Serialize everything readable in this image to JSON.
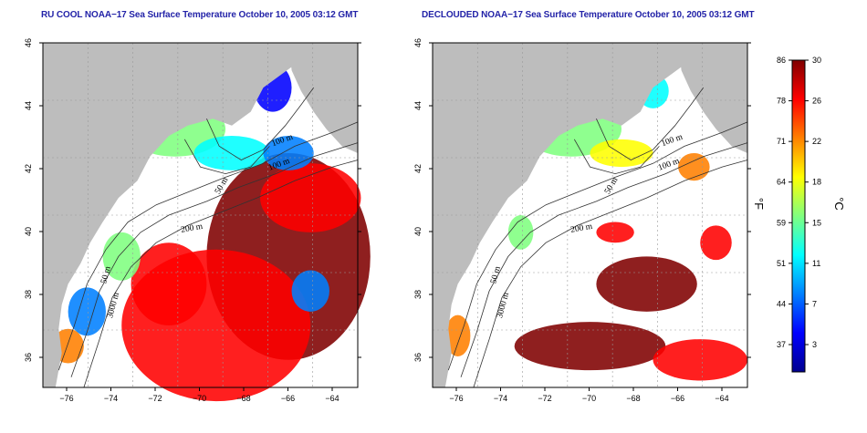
{
  "panels": [
    {
      "title": "RU COOL NOAA−17 Sea Surface Temperature October 10, 2005 03:12 GMT",
      "x_ticks": [
        "−76",
        "−74",
        "−72",
        "−70",
        "−68",
        "−66",
        "−64"
      ],
      "y_ticks": [
        "46",
        "44",
        "42",
        "40",
        "38",
        "36"
      ],
      "depth_labels": [
        "100 m",
        "100 m",
        "50 m",
        "200 m",
        "50 m",
        "3000 m"
      ],
      "cloud_masked": false
    },
    {
      "title": "DECLOUDED NOAA−17 Sea Surface Temperature October 10, 2005 03:12 GMT",
      "x_ticks": [
        "−76",
        "−74",
        "−72",
        "−70",
        "−68",
        "−66",
        "−64"
      ],
      "y_ticks": [
        "46",
        "44",
        "42",
        "40",
        "38",
        "36"
      ],
      "depth_labels": [
        "100 m",
        "100 m",
        "50 m",
        "200 m",
        "50 m",
        "3000 m"
      ],
      "cloud_masked": true
    }
  ],
  "colorbar": {
    "fahrenheit_ticks": [
      "86",
      "78",
      "71",
      "64",
      "59",
      "51",
      "44",
      "37"
    ],
    "celsius_ticks": [
      "30",
      "26",
      "22",
      "18",
      "15",
      "11",
      "7",
      "3"
    ],
    "unit_f": "°F",
    "unit_c": "°C",
    "colors": [
      "#00008f",
      "#0000ff",
      "#0080ff",
      "#00ffff",
      "#80ff80",
      "#ffff00",
      "#ff8000",
      "#ff0000",
      "#800000"
    ]
  },
  "map_colors": {
    "land": "#bdbdbd",
    "cloud": "#ffffff",
    "contour": "#333333",
    "grid": "#999999"
  }
}
